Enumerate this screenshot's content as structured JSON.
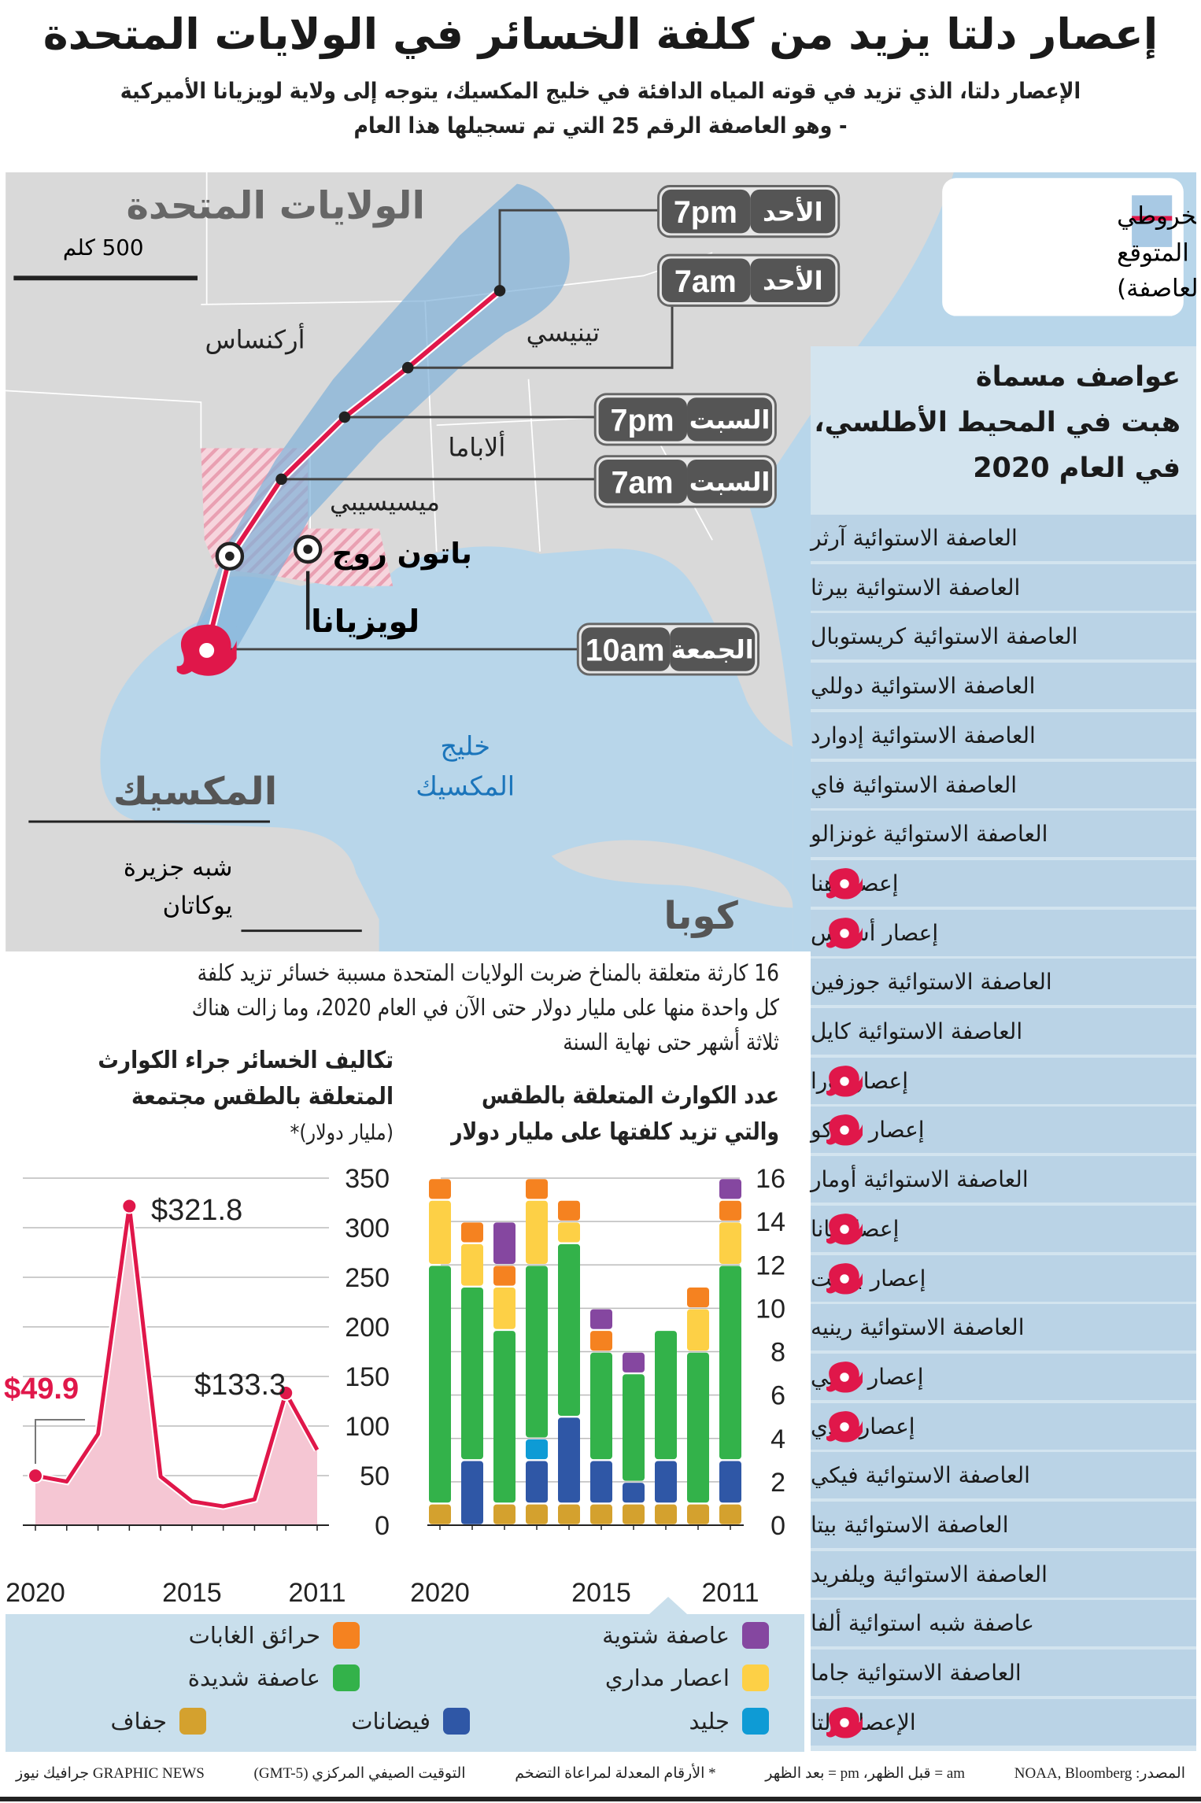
{
  "header": {
    "title": "إعصار دلتا يزيد من كلفة الخسائر في الولايات المتحدة",
    "subtitle_line1": "الإعصار دلتا، الذي تزيد في قوته المياه الدافئة في خليج المكسيك، يتوجه إلى ولاية لويزيانا الأميركية",
    "subtitle_line2": "- وهو العاصفة الرقم 25 التي تم تسجيلها هذا العام"
  },
  "map": {
    "country_label": "الولايات المتحدة",
    "scale_label": "500 كلم",
    "states": {
      "arkansas": "أركنساس",
      "tennessee": "تينيسي",
      "alabama": "ألاباما",
      "mississippi": "ميسيسيبي",
      "louisiana": "لويزيانا"
    },
    "city": "باتون روج",
    "mexico": "المكسيك",
    "gulf_line1": "خليج",
    "gulf_line2": "المكسيك",
    "yucatan_line1": "شبه جزيرة",
    "yucatan_line2": "يوكاتان",
    "cuba": "كوبا",
    "track_times": [
      {
        "day": "الأحد",
        "time": "7pm"
      },
      {
        "day": "الأحد",
        "time": "7am"
      },
      {
        "day": "السبت",
        "time": "7pm"
      },
      {
        "day": "السبت",
        "time": "7am"
      },
      {
        "day": "الجمعة",
        "time": "10am"
      }
    ],
    "legend": {
      "line1": "المسار المخروطي",
      "line2": "المتوقع",
      "line3": "(مركز العاصفة)"
    },
    "colors": {
      "track": "#e0174a",
      "cone": "#7fb0d8",
      "land": "#d9d9d9",
      "water": "#b8d6ea",
      "hatch": "#f2a7b8"
    }
  },
  "storms_panel": {
    "heading_line1": "عواصف مسماة",
    "heading_line2": "هبت في المحيط الأطلسي،",
    "heading_line3": "في العام 2020",
    "items": [
      {
        "name": "العاصفة الاستوائية آرثر",
        "hurricane": false
      },
      {
        "name": "العاصفة الاستوائية بيرثا",
        "hurricane": false
      },
      {
        "name": "العاصفة الاستوائية كريستوبال",
        "hurricane": false
      },
      {
        "name": "العاصفة الاستوائية دوللي",
        "hurricane": false
      },
      {
        "name": "العاصفة الاستوائية إدوارد",
        "hurricane": false
      },
      {
        "name": "العاصفة الاستوائية فاي",
        "hurricane": false
      },
      {
        "name": "العاصفة الاستوائية غونزالو",
        "hurricane": false
      },
      {
        "name": "إعصار هنا",
        "hurricane": true
      },
      {
        "name": "إعصار أسياس",
        "hurricane": true
      },
      {
        "name": "العاصفة الاستوائية جوزفين",
        "hurricane": false
      },
      {
        "name": "العاصفة الاستوائية كايل",
        "hurricane": false
      },
      {
        "name": "إعصار لورا",
        "hurricane": true
      },
      {
        "name": "إعصار ماركو",
        "hurricane": true
      },
      {
        "name": "العاصفة الاستوائية أومار",
        "hurricane": false
      },
      {
        "name": "إعصار نانا",
        "hurricane": true
      },
      {
        "name": "إعصار بوليت",
        "hurricane": true
      },
      {
        "name": "العاصفة الاستوائية رينيه",
        "hurricane": false
      },
      {
        "name": "إعصار سالي",
        "hurricane": true
      },
      {
        "name": "إعصار تيدي",
        "hurricane": true
      },
      {
        "name": "العاصفة الاستوائية فيكي",
        "hurricane": false
      },
      {
        "name": "العاصفة الاستوائية بيتا",
        "hurricane": false
      },
      {
        "name": "العاصفة الاستوائية ويلفريد",
        "hurricane": false
      },
      {
        "name": "عاصفة شبه استوائية ألفا",
        "hurricane": false
      },
      {
        "name": "العاصفة الاستوائية جاما",
        "hurricane": false
      },
      {
        "name": "الإعصار دلتا",
        "hurricane": true
      }
    ]
  },
  "intro": {
    "line1": "16 كارثة متعلقة بالمناخ ضربت الولايات المتحدة مسببة خسائر تزيد كلفة",
    "line2": "كل واحدة منها على مليار دولار حتى الآن في العام 2020، وما زالت هناك",
    "line3": "ثلاثة أشهر حتى نهاية السنة"
  },
  "chart_data": [
    {
      "type": "area",
      "title": "تكاليف الخسائر جراء الكوارث المتعلقة بالطقس مجتمعة",
      "title_line1": "تكاليف الخسائر جراء الكوارث",
      "title_line2": "المتعلقة بالطقس مجتمعة",
      "ylabel": "(مليار دولار)*",
      "x": [
        2020,
        2019,
        2018,
        2017,
        2016,
        2015,
        2014,
        2013,
        2012,
        2011
      ],
      "x_tick_labels": [
        "2020",
        "2015",
        "2011"
      ],
      "values": [
        49.9,
        44,
        92,
        321.8,
        49,
        24,
        19,
        26,
        133.3,
        76
      ],
      "annotations": [
        {
          "x": 2020,
          "label": "$49.9"
        },
        {
          "x": 2017,
          "label": "$321.8"
        },
        {
          "x": 2012,
          "label": "$133.3"
        }
      ],
      "ylim": [
        0,
        350
      ],
      "y_ticks": [
        0,
        50,
        100,
        150,
        200,
        250,
        300,
        350
      ],
      "grid": true,
      "colors": {
        "line": "#e0174a",
        "fill": "#f5c6d3"
      }
    },
    {
      "type": "bar",
      "stacked": true,
      "title_line1": "عدد الكوارث المتعلقة بالطقس",
      "title_line2": "والتي تزيد كلفتها على مليار دولار",
      "categories": [
        "2020",
        "2019",
        "2018",
        "2017",
        "2016",
        "2015",
        "2014",
        "2013",
        "2012",
        "2011"
      ],
      "x_tick_labels": [
        "2020",
        "2015",
        "2011"
      ],
      "ylim": [
        0,
        16
      ],
      "y_ticks": [
        0,
        2,
        4,
        6,
        8,
        10,
        12,
        14,
        16
      ],
      "grid": true,
      "series": [
        {
          "name": "جفاف",
          "color": "#d4a12e",
          "values": [
            1,
            0,
            1,
            1,
            1,
            1,
            1,
            1,
            1,
            1
          ]
        },
        {
          "name": "فيضانات",
          "color": "#2f57a6",
          "values": [
            0,
            3,
            0,
            2,
            4,
            2,
            1,
            2,
            0,
            2
          ]
        },
        {
          "name": "جليد",
          "color": "#0e9bd5",
          "values": [
            0,
            0,
            0,
            1,
            0,
            0,
            0,
            0,
            0,
            0
          ]
        },
        {
          "name": "عاصفة شديدة",
          "color": "#33b24a",
          "values": [
            11,
            8,
            8,
            8,
            8,
            5,
            5,
            6,
            7,
            9
          ]
        },
        {
          "name": "اعصار مداري",
          "color": "#fdd046",
          "values": [
            3,
            2,
            2,
            3,
            1,
            0,
            0,
            0,
            2,
            2
          ]
        },
        {
          "name": "حرائق الغابات",
          "color": "#f58220",
          "values": [
            1,
            1,
            1,
            1,
            1,
            1,
            0,
            0,
            1,
            1
          ]
        },
        {
          "name": "عاصفة شتوية",
          "color": "#8547a0",
          "values": [
            0,
            0,
            2,
            0,
            0,
            1,
            1,
            0,
            0,
            1
          ]
        }
      ]
    }
  ],
  "footer": {
    "source": "المصدر: NOAA, Bloomberg",
    "ampm": "am = قبل الظهر، pm = بعد الظهر",
    "note": "* الأرقام المعدلة لمراعاة التضخم",
    "timezone": "التوقيت الصيفي المركزي (GMT-5)",
    "credit": "GRAPHIC NEWS جرافيك نيوز"
  }
}
